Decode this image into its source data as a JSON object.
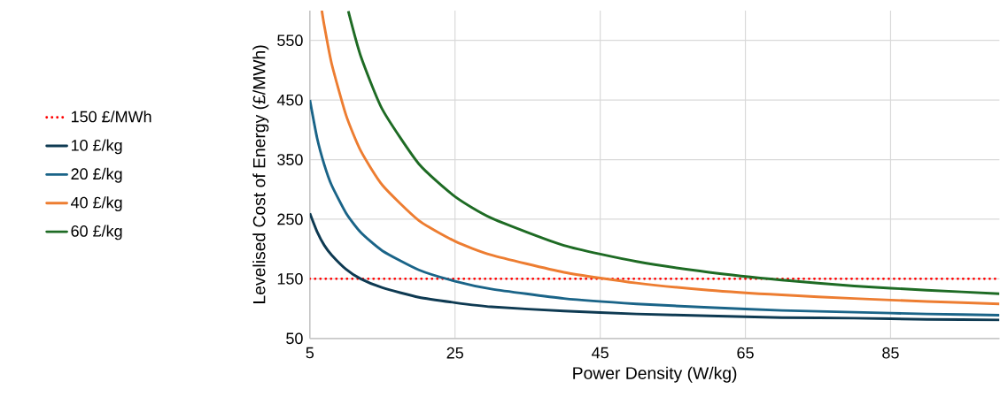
{
  "chart_data": {
    "type": "line",
    "xlabel": "Power Density (W/kg)",
    "ylabel": "Levelised Cost of Energy (£/MWh)",
    "xlim": [
      5,
      100
    ],
    "ylim": [
      50,
      600
    ],
    "xticks": [
      5,
      25,
      45,
      65,
      85
    ],
    "yticks": [
      50,
      150,
      250,
      350,
      450,
      550
    ],
    "grid": true,
    "legend": "left",
    "line_style": "solid",
    "marker": "none",
    "ref_lines": [
      {
        "axis": "y",
        "value": 150,
        "label": "150 £/MWh",
        "color": "#ff0000",
        "line_style": "dotted"
      }
    ],
    "series": [
      {
        "name": "10 £/kg",
        "color": "#0e3a52",
        "x": [
          5,
          6,
          7,
          8,
          10,
          12,
          15,
          20,
          25,
          30,
          40,
          50,
          60,
          70,
          80,
          90,
          100
        ],
        "values": [
          260,
          229,
          206,
          190,
          166,
          150,
          135,
          119,
          110,
          103,
          96,
          91,
          88,
          85,
          84,
          82,
          81
        ]
      },
      {
        "name": "20 £/kg",
        "color": "#1a6488",
        "x": [
          5,
          6,
          7,
          8,
          10,
          12,
          15,
          20,
          25,
          30,
          40,
          50,
          60,
          70,
          80,
          90,
          100
        ],
        "values": [
          450,
          386,
          341,
          307,
          260,
          228,
          197,
          165,
          146,
          133,
          117,
          108,
          102,
          97,
          94,
          91,
          89
        ]
      },
      {
        "name": "40 £/kg",
        "color": "#ed7d31",
        "x": [
          6.65,
          7,
          8,
          10,
          12,
          15,
          20,
          25,
          30,
          40,
          50,
          60,
          70,
          80,
          90,
          100
        ],
        "values": [
          600,
          574,
          511,
          424,
          365,
          307,
          248,
          213,
          190,
          161,
          143,
          131,
          123,
          117,
          112,
          108
        ]
      },
      {
        "name": "60 £/kg",
        "color": "#1e6b24",
        "x": [
          10.3,
          12,
          15,
          20,
          25,
          30,
          40,
          50,
          60,
          70,
          80,
          90,
          100
        ],
        "values": [
          599,
          524,
          434,
          343,
          288,
          252,
          206,
          179,
          161,
          148,
          138,
          131,
          125
        ]
      }
    ]
  }
}
